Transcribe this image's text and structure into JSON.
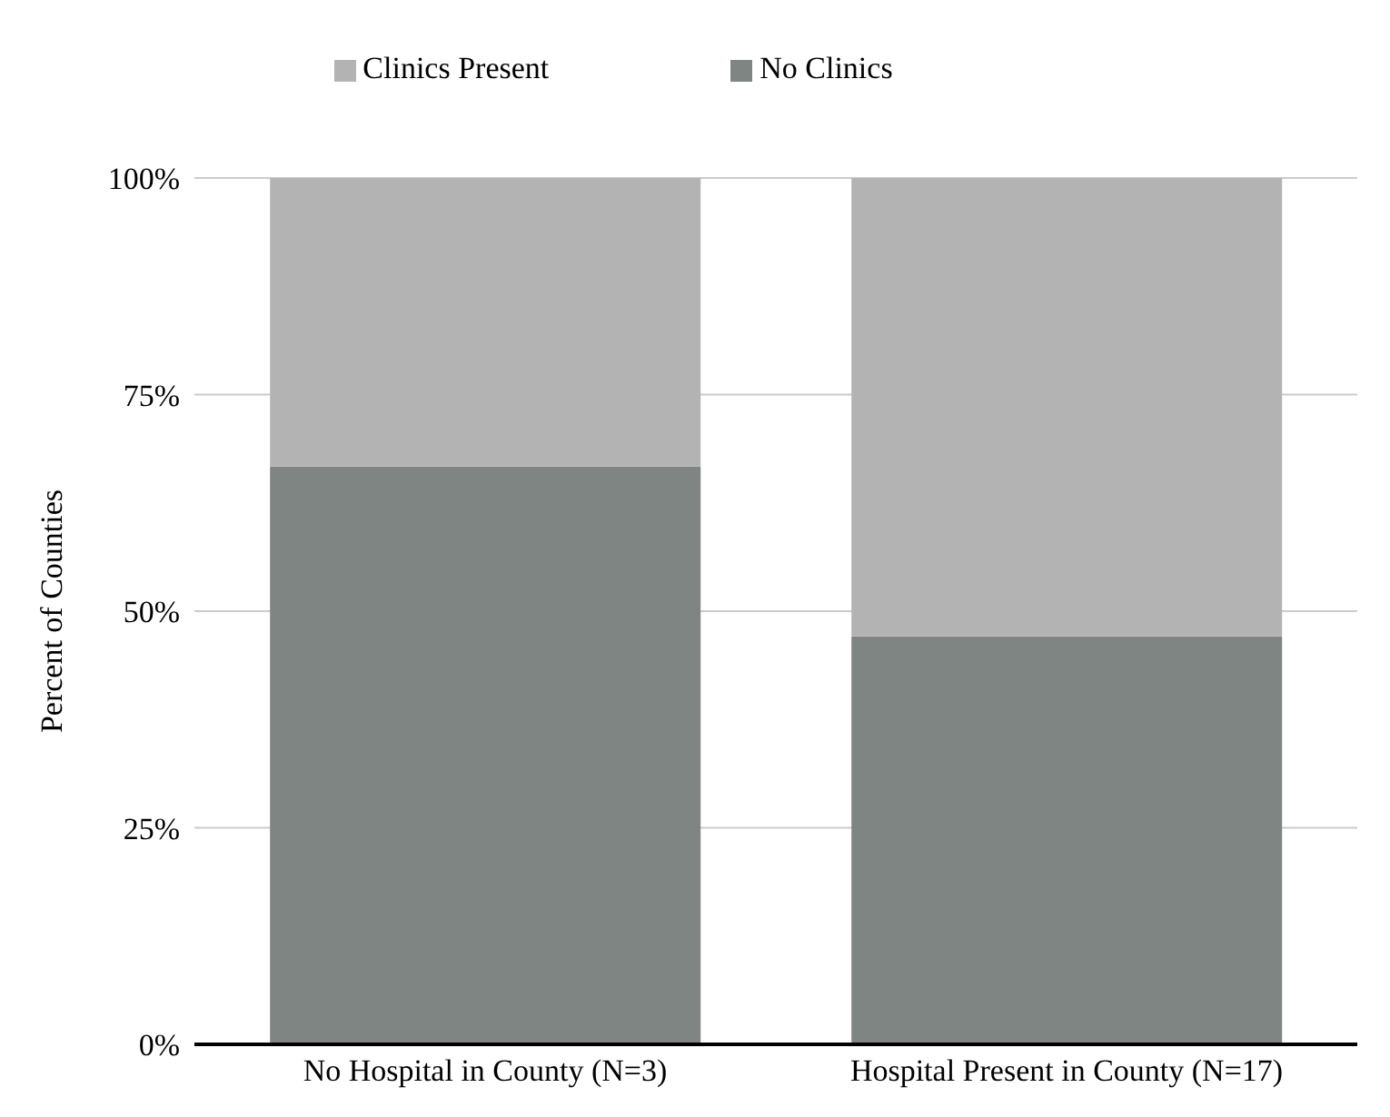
{
  "chart_data": {
    "type": "bar",
    "ylabel": "Percent of Counties",
    "categories": [
      "No Hospital in County (N=3)",
      "Hospital Present in County (N=17)"
    ],
    "stacked": true,
    "series": [
      {
        "name": "No Clinics",
        "color": "#7f8582",
        "values": [
          66.7,
          47.1
        ]
      },
      {
        "name": "Clinics Present",
        "color": "#b3b3b3",
        "values": [
          33.3,
          52.9
        ]
      }
    ],
    "ylim": [
      0,
      100
    ],
    "yticks": [
      {
        "value": 0,
        "label": "0%"
      },
      {
        "value": 25,
        "label": "25%"
      },
      {
        "value": 50,
        "label": "50%"
      },
      {
        "value": 75,
        "label": "75%"
      },
      {
        "value": 100,
        "label": "100%"
      }
    ],
    "grid": "y",
    "legend": "top"
  }
}
